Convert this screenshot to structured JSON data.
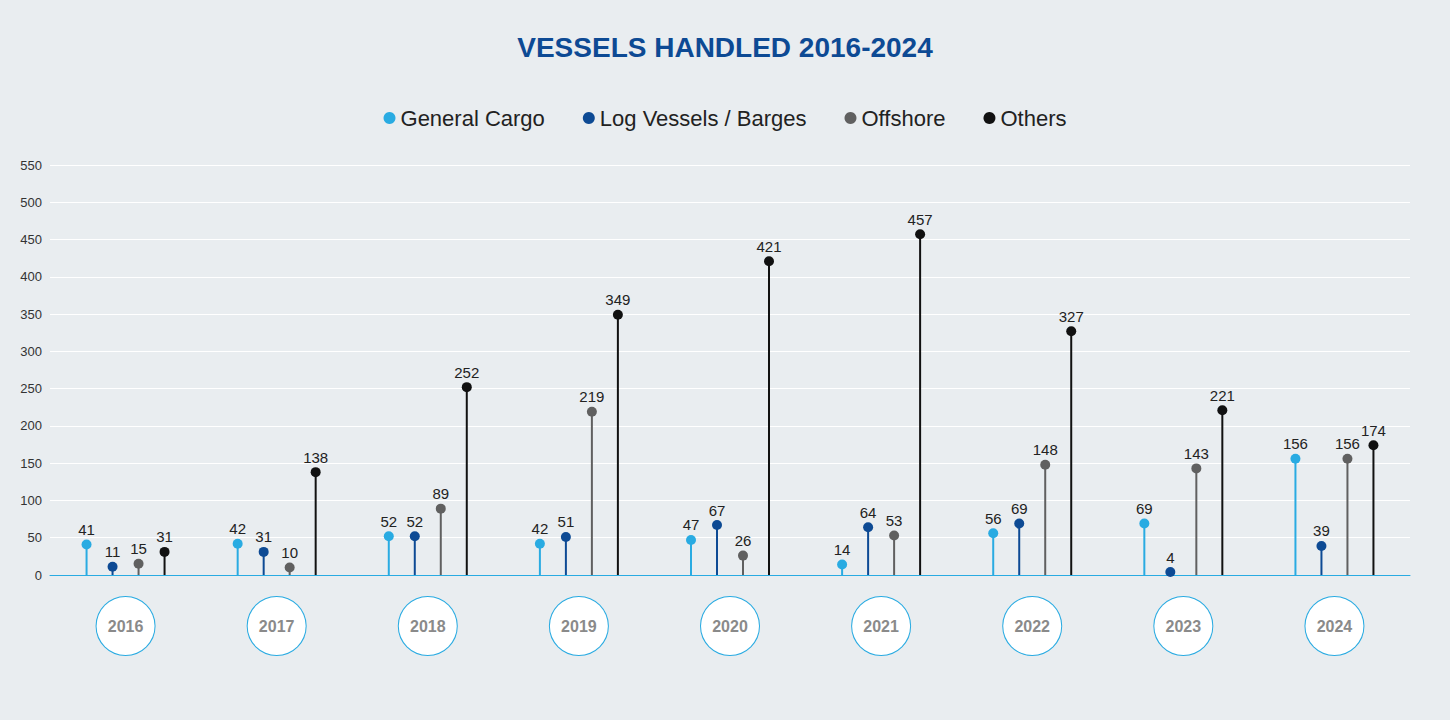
{
  "chart_data": {
    "type": "bar",
    "title": "VESSELS HANDLED 2016-2024",
    "categories": [
      "2016",
      "2017",
      "2018",
      "2019",
      "2020",
      "2021",
      "2022",
      "2023",
      "2024"
    ],
    "series": [
      {
        "name": "General Cargo",
        "color": "#29abe2",
        "values": [
          41,
          42,
          52,
          42,
          47,
          14,
          56,
          69,
          156
        ]
      },
      {
        "name": "Log Vessels / Barges",
        "color": "#0d4a94",
        "values": [
          11,
          31,
          52,
          51,
          67,
          64,
          69,
          4,
          39
        ]
      },
      {
        "name": "Offshore",
        "color": "#606060",
        "values": [
          15,
          10,
          89,
          219,
          26,
          53,
          148,
          143,
          156
        ]
      },
      {
        "name": "Others",
        "color": "#111111",
        "values": [
          31,
          138,
          252,
          349,
          421,
          457,
          327,
          221,
          174
        ]
      }
    ],
    "ylim": [
      0,
      550
    ],
    "yticks": [
      0,
      50,
      100,
      150,
      200,
      250,
      300,
      350,
      400,
      450,
      500,
      550
    ],
    "grid": true,
    "legend": "top",
    "data_labels": true,
    "marker": "circle"
  }
}
